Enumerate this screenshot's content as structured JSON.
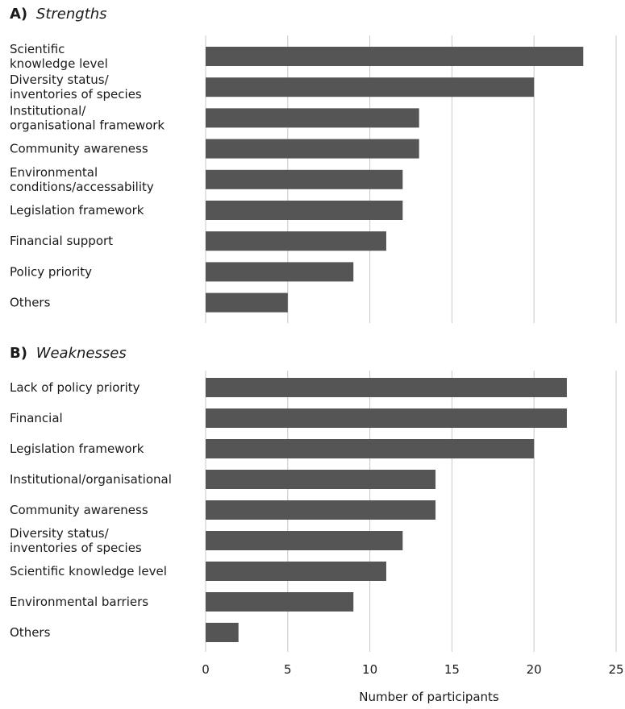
{
  "chart_data": [
    {
      "type": "bar",
      "orientation": "horizontal",
      "panel_label": "A)",
      "title": "Strengths",
      "categories": [
        [
          "Scientific",
          "knowledge level"
        ],
        [
          "Diversity status/",
          "inventories of species"
        ],
        [
          "Institutional/",
          "organisational framework"
        ],
        [
          "Community awareness"
        ],
        [
          "Environmental",
          "conditions/accessability"
        ],
        [
          "Legislation framework"
        ],
        [
          "Financial support"
        ],
        [
          "Policy priority"
        ],
        [
          "Others"
        ]
      ],
      "values": [
        23,
        20,
        13,
        13,
        12,
        12,
        11,
        9,
        5
      ],
      "xlim": [
        0,
        25
      ],
      "grid": true,
      "bar_color": "#555555"
    },
    {
      "type": "bar",
      "orientation": "horizontal",
      "panel_label": "B)",
      "title": "Weaknesses",
      "categories": [
        [
          "Lack of policy priority"
        ],
        [
          "Financial"
        ],
        [
          "Legislation framework"
        ],
        [
          "Institutional/organisational"
        ],
        [
          "Community awareness"
        ],
        [
          "Diversity status/",
          "inventories of species"
        ],
        [
          "Scientific knowledge level"
        ],
        [
          "Environmental barriers"
        ],
        [
          "Others"
        ]
      ],
      "values": [
        22,
        22,
        20,
        14,
        14,
        12,
        11,
        9,
        2
      ],
      "xlim": [
        0,
        25
      ],
      "xticks": [
        0,
        5,
        10,
        15,
        20,
        25
      ],
      "xlabel": "Number of participants",
      "grid": true,
      "bar_color": "#555555"
    }
  ]
}
